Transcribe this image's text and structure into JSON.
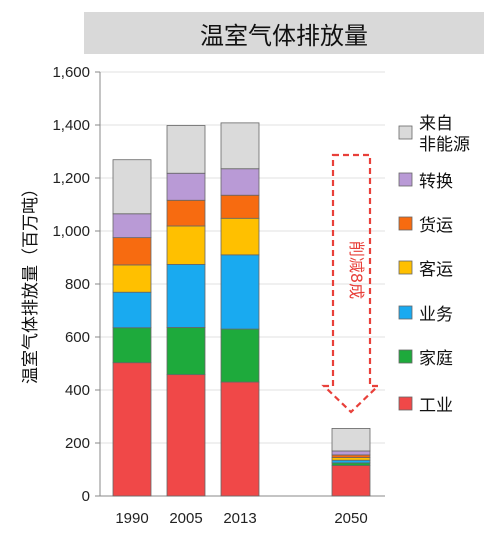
{
  "chart_data": {
    "type": "bar",
    "stacked": true,
    "title": "温室气体排放量",
    "ylabel": "温室气体排放量（百万吨）",
    "ylim": [
      0,
      1600
    ],
    "yticks": [
      "0",
      "200",
      "400",
      "600",
      "800",
      "1,000",
      "1,200",
      "1,400",
      "1,600"
    ],
    "categories": [
      "1990",
      "2005",
      "2013",
      "2050"
    ],
    "series": [
      {
        "name": "工业",
        "color": "#f04848",
        "values": [
          503,
          458,
          430,
          115
        ]
      },
      {
        "name": "家庭",
        "color": "#1eaa3c",
        "values": [
          132,
          178,
          200,
          10
        ]
      },
      {
        "name": "业务",
        "color": "#19aaf0",
        "values": [
          134,
          238,
          280,
          10
        ]
      },
      {
        "name": "客运",
        "color": "#ffc000",
        "values": [
          103,
          145,
          138,
          10
        ]
      },
      {
        "name": "货运",
        "color": "#f76b10",
        "values": [
          103,
          97,
          87,
          10
        ]
      },
      {
        "name": "转换",
        "color": "#b99ad6",
        "values": [
          90,
          102,
          100,
          15
        ]
      },
      {
        "name": "来自非能源",
        "color": "#dadada",
        "values": [
          204,
          180,
          173,
          85
        ]
      }
    ],
    "legend_position": "right",
    "annotation": "削减8成"
  }
}
